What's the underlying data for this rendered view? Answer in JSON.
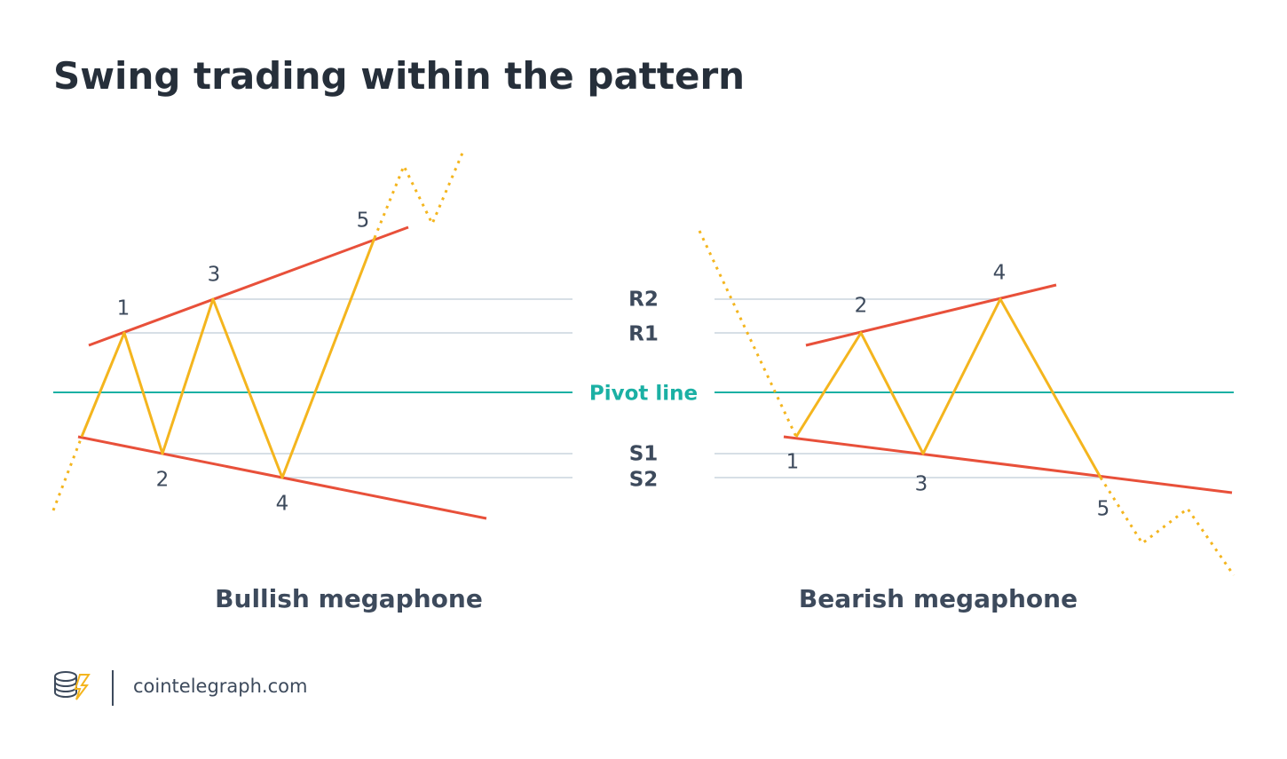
{
  "header": {
    "title": "Swing trading within the pattern"
  },
  "levels": [
    "R2",
    "R1",
    "Pivot line",
    "S1",
    "S2"
  ],
  "bullish": {
    "caption": "Bullish megaphone",
    "points": [
      "1",
      "2",
      "3",
      "4",
      "5"
    ]
  },
  "bearish": {
    "caption": "Bearish megaphone",
    "points": [
      "1",
      "2",
      "3",
      "4",
      "5"
    ]
  },
  "footer": {
    "source": "cointelegraph.com"
  }
}
